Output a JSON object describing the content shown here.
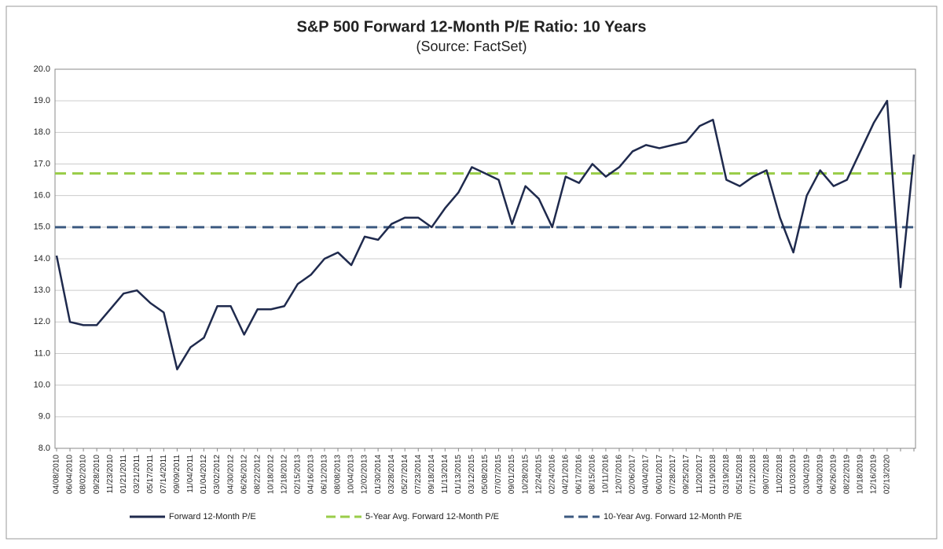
{
  "chart_data": {
    "type": "line",
    "title": "S&P 500 Forward 12-Month P/E Ratio: 10 Years",
    "subtitle": "(Source: FactSet)",
    "categories": [
      "04/08/2010",
      "06/04/2010",
      "08/02/2010",
      "09/28/2010",
      "11/23/2010",
      "01/21/2011",
      "03/21/2011",
      "05/17/2011",
      "07/14/2011",
      "09/09/2011",
      "11/04/2011",
      "01/04/2012",
      "03/02/2012",
      "04/30/2012",
      "06/26/2012",
      "08/22/2012",
      "10/18/2012",
      "12/18/2012",
      "02/15/2013",
      "04/16/2013",
      "06/12/2013",
      "08/08/2013",
      "10/04/2013",
      "12/02/2013",
      "01/30/2014",
      "03/28/2014",
      "05/27/2014",
      "07/23/2014",
      "09/18/2014",
      "11/13/2014",
      "01/13/2015",
      "03/12/2015",
      "05/08/2015",
      "07/07/2015",
      "09/01/2015",
      "10/28/2015",
      "12/24/2015",
      "02/24/2016",
      "04/21/2016",
      "06/17/2016",
      "08/15/2016",
      "10/11/2016",
      "12/07/2016",
      "02/06/2017",
      "04/04/2017",
      "06/01/2017",
      "07/28/2017",
      "09/25/2017",
      "11/20/2017",
      "01/19/2018",
      "03/19/2018",
      "05/15/2018",
      "07/12/2018",
      "09/07/2018",
      "11/02/2018",
      "01/03/2019",
      "03/04/2019",
      "04/30/2019",
      "06/26/2019",
      "08/22/2019",
      "10/18/2019",
      "12/16/2019",
      "02/13/2020",
      null,
      null
    ],
    "series": [
      {
        "name": "Forward 12-Month P/E",
        "color": "#1f2a4d",
        "values": [
          14.1,
          12.0,
          11.9,
          11.9,
          12.4,
          12.9,
          13.0,
          12.6,
          12.3,
          10.5,
          11.2,
          11.5,
          12.5,
          12.5,
          11.6,
          12.4,
          12.4,
          12.5,
          13.2,
          13.5,
          14.0,
          14.2,
          13.8,
          14.7,
          14.6,
          15.1,
          15.3,
          15.3,
          15.0,
          15.6,
          16.1,
          16.9,
          16.7,
          16.5,
          15.1,
          16.3,
          15.9,
          15.0,
          16.6,
          16.4,
          17.0,
          16.6,
          16.9,
          17.4,
          17.6,
          17.5,
          17.6,
          17.7,
          18.2,
          18.4,
          16.5,
          16.3,
          16.6,
          16.8,
          15.3,
          14.2,
          16.0,
          16.8,
          16.3,
          16.5,
          17.4,
          18.3,
          19.0,
          13.1,
          17.3
        ]
      }
    ],
    "reference_lines": [
      {
        "name": "5-Year Avg. Forward 12-Month P/E",
        "value": 16.7,
        "color": "#9acd4a"
      },
      {
        "name": "10-Year Avg. Forward 12-Month P/E",
        "value": 15.0,
        "color": "#3c5a80"
      }
    ],
    "ylim": [
      8,
      20
    ],
    "yticks": [
      {
        "value": 8,
        "label": "8.0"
      },
      {
        "value": 9,
        "label": "9.0"
      },
      {
        "value": 10,
        "label": "10.0"
      },
      {
        "value": 11,
        "label": "11.0"
      },
      {
        "value": 12,
        "label": "12.0"
      },
      {
        "value": 13,
        "label": "13.0"
      },
      {
        "value": 14,
        "label": "14.0"
      },
      {
        "value": 15,
        "label": "15.0"
      },
      {
        "value": 16,
        "label": "16.0"
      },
      {
        "value": 17,
        "label": "17.0"
      },
      {
        "value": 18,
        "label": "18.0"
      },
      {
        "value": 19,
        "label": "19.0"
      },
      {
        "value": 20,
        "label": "20.0"
      }
    ],
    "grid": true
  }
}
